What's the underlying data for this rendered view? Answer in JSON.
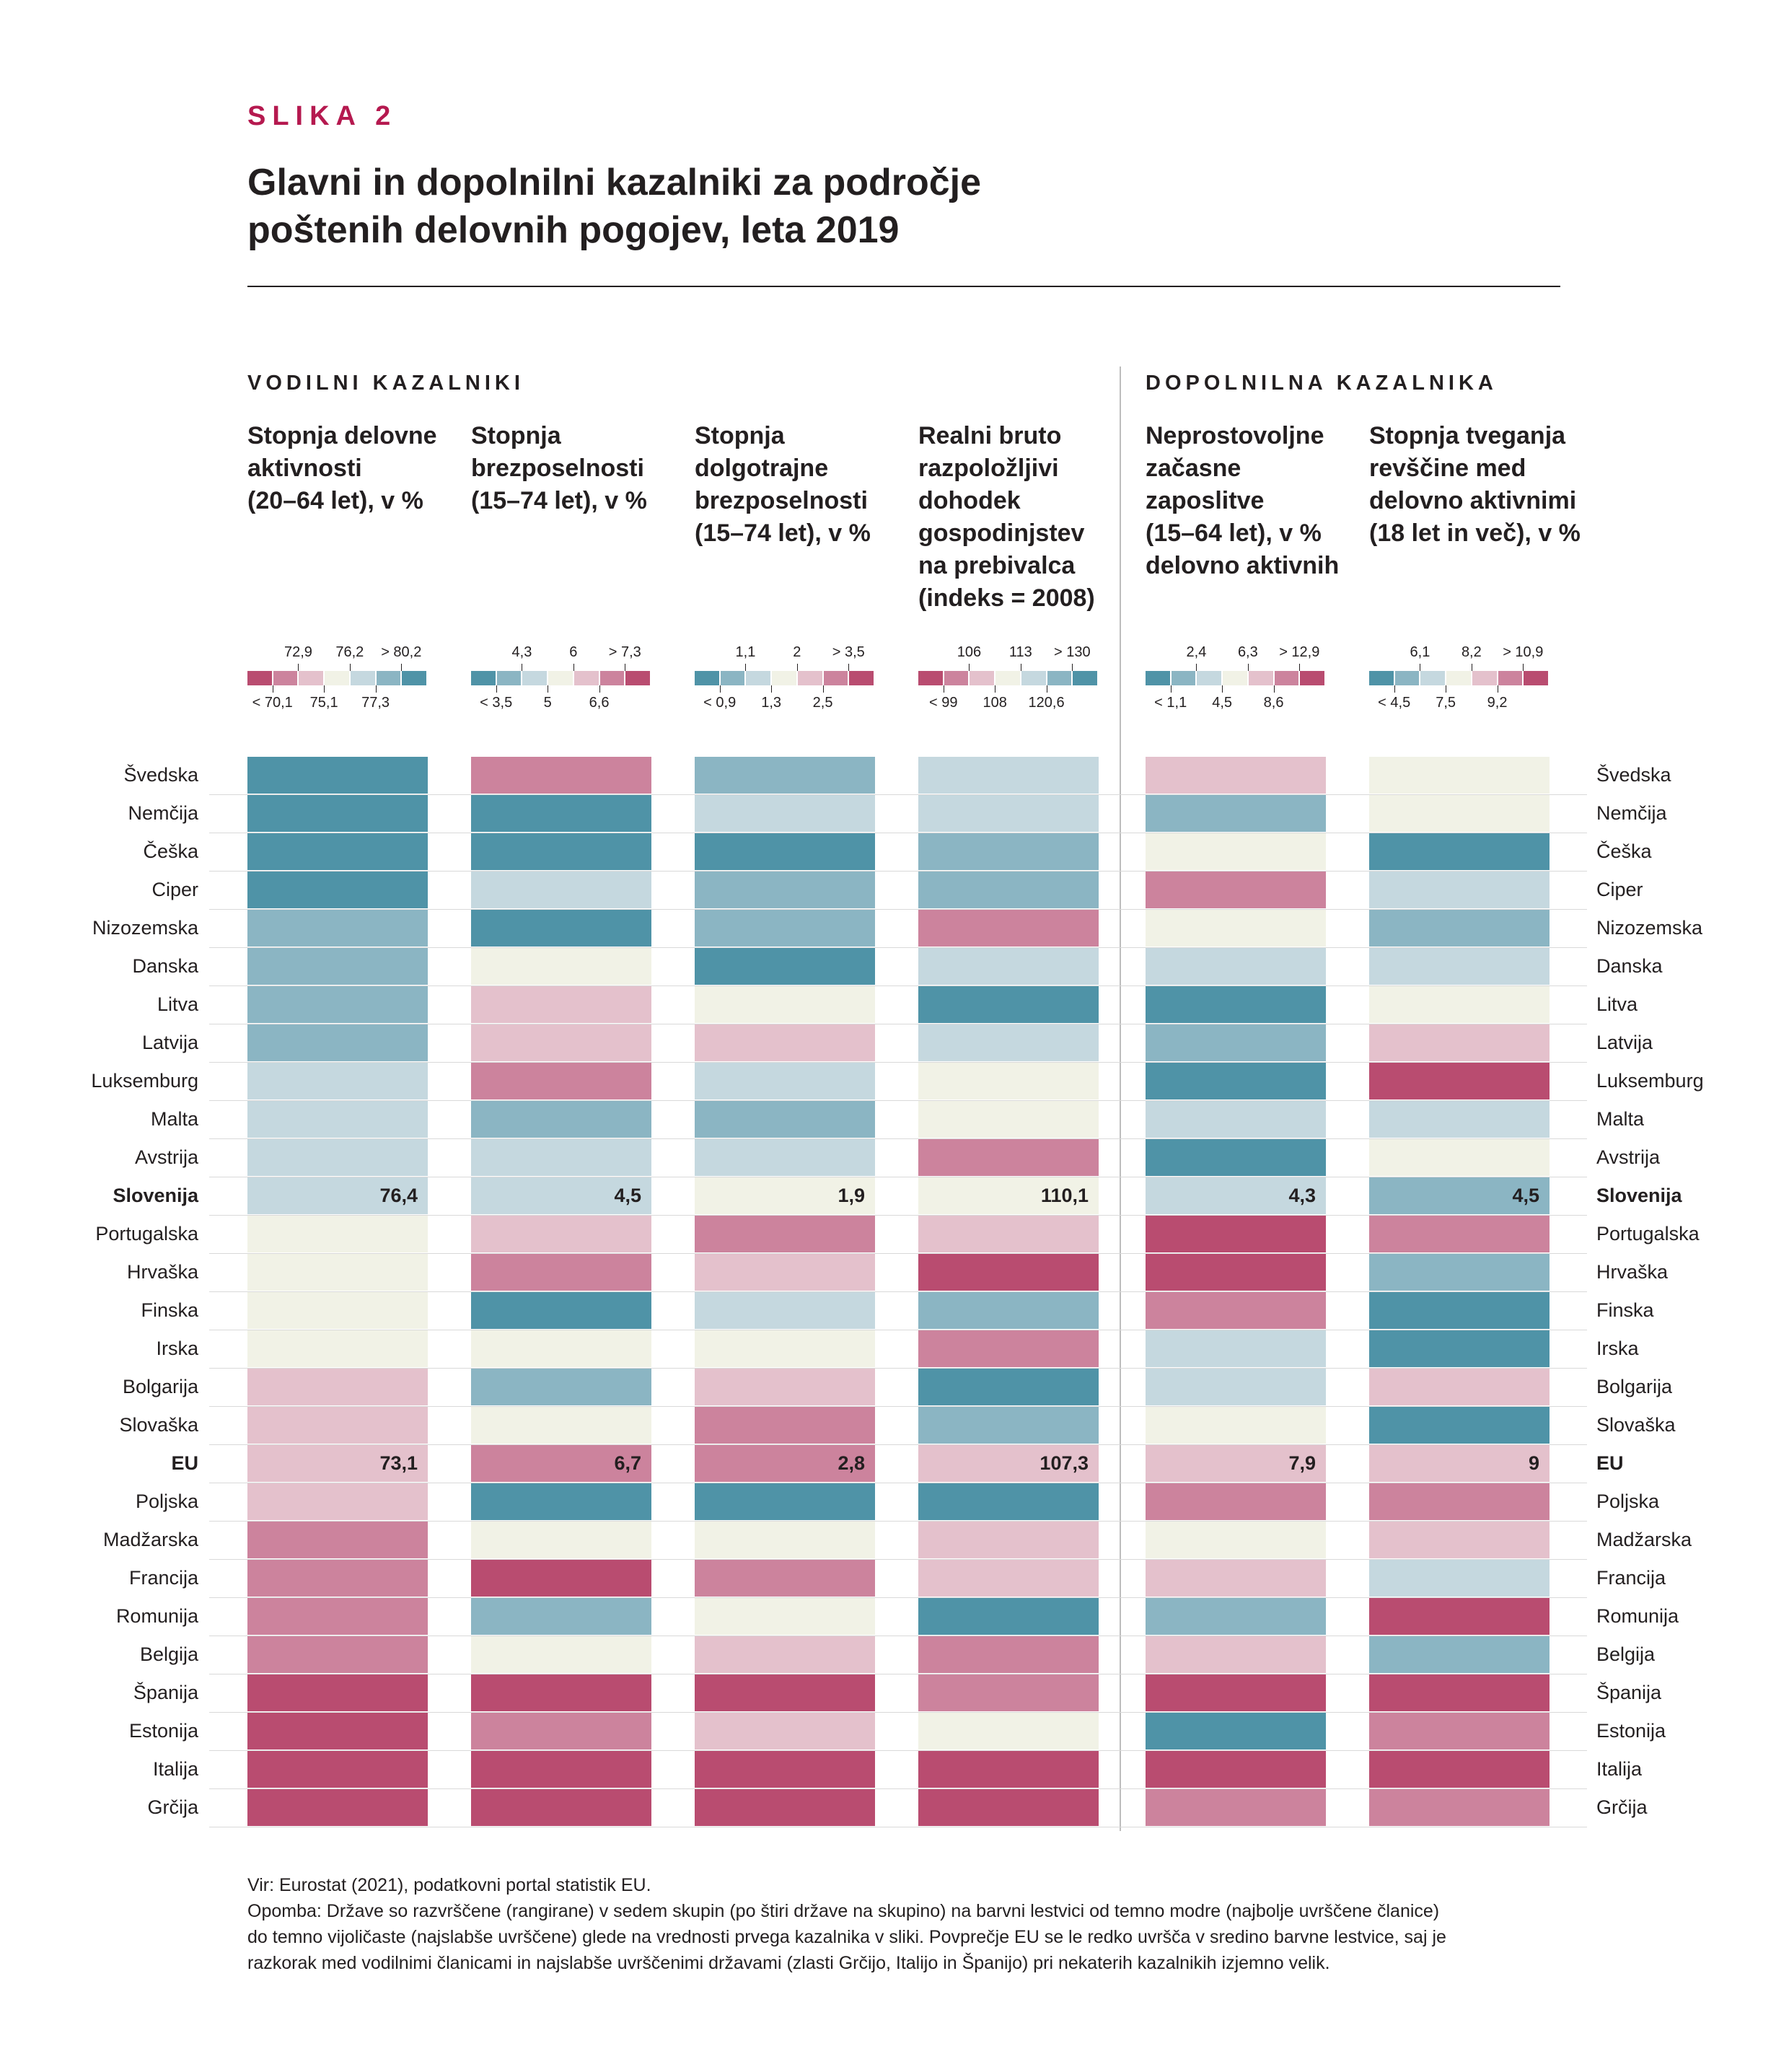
{
  "figure": {
    "label": "SLIKA 2",
    "title_line1": "Glavni in dopolnilni kazalniki za področje",
    "title_line2": "poštenih delovnih pogojev, leta 2019",
    "section_main": "VODILNI KAZALNIKI",
    "section_supp": "DOPOLNILNA KAZALNIKA",
    "source": "Vir: Eurostat (2021), podatkovni portal statistik EU.",
    "note_line1": "Opomba: Države so razvrščene (rangirane) v sedem skupin (po štiri države na skupino) na barvni lestvici od temno modre (najbolje uvrščene članice)",
    "note_line2": "do temno vijoličaste (najslabše uvrščene) glede na vrednosti prvega kazalnika v sliki. Povprečje EU se le redko uvršča v sredino barvne lestvice, saj je",
    "note_line3": "razkorak med vodilnimi članicami in najslabše uvrščenimi državami (zlasti Grčijo, Italijo in Španijo) pri nekaterih kazalnikih izjemno velik."
  },
  "colors": {
    "c1": "#4f93a7",
    "c2": "#8bb5c3",
    "c3": "#c5d8df",
    "c4": "#f1f2e6",
    "c5": "#e4c1cc",
    "c6": "#cc839d",
    "c7": "#b94c70",
    "accent": "#b5194f"
  },
  "chart_data": {
    "type": "heatmap",
    "countries": [
      "Švedska",
      "Nemčija",
      "Češka",
      "Ciper",
      "Nizozemska",
      "Danska",
      "Litva",
      "Latvija",
      "Luksemburg",
      "Malta",
      "Avstrija",
      "Slovenija",
      "Portugalska",
      "Hrvaška",
      "Finska",
      "Irska",
      "Bolgarija",
      "Slovaška",
      "EU",
      "Poljska",
      "Madžarska",
      "Francija",
      "Romunija",
      "Belgija",
      "Španija",
      "Estonija",
      "Italija",
      "Grčija"
    ],
    "highlight_rows": [
      "Slovenija",
      "EU"
    ],
    "columns": [
      {
        "title": [
          "Stopnja delovne",
          "aktivnosti",
          "(20–64 let), v %"
        ],
        "scale_top": [
          "72,9",
          "76,2",
          "> 80,2"
        ],
        "scale_bottom": [
          "< 70,1",
          "75,1",
          "77,3"
        ],
        "scale_dir": "pink-to-blue",
        "classes": [
          1,
          1,
          1,
          1,
          2,
          2,
          2,
          2,
          3,
          3,
          3,
          3,
          4,
          4,
          4,
          4,
          5,
          5,
          5,
          5,
          6,
          6,
          6,
          6,
          7,
          7,
          7,
          7
        ],
        "values": {
          "Slovenija": "76,4",
          "EU": "73,1"
        }
      },
      {
        "title": [
          "Stopnja",
          "brezposelnosti",
          "(15–74 let), v %"
        ],
        "scale_top": [
          "4,3",
          "6",
          "> 7,3"
        ],
        "scale_bottom": [
          "< 3,5",
          "5",
          "6,6"
        ],
        "scale_dir": "blue-to-pink",
        "classes": [
          6,
          1,
          1,
          3,
          1,
          4,
          5,
          5,
          6,
          2,
          3,
          3,
          5,
          6,
          1,
          4,
          2,
          4,
          6,
          1,
          4,
          7,
          2,
          4,
          7,
          6,
          7,
          7
        ],
        "values": {
          "Slovenija": "4,5",
          "EU": "6,7"
        }
      },
      {
        "title": [
          "Stopnja",
          "dolgotrajne",
          "brezposelnosti",
          "(15–74 let), v %"
        ],
        "scale_top": [
          "1,1",
          "2",
          "> 3,5"
        ],
        "scale_bottom": [
          "< 0,9",
          "1,3",
          "2,5"
        ],
        "scale_dir": "blue-to-pink",
        "classes": [
          2,
          3,
          1,
          2,
          2,
          1,
          4,
          5,
          3,
          2,
          3,
          4,
          6,
          5,
          3,
          4,
          5,
          6,
          6,
          1,
          4,
          6,
          4,
          5,
          7,
          5,
          7,
          7
        ],
        "values": {
          "Slovenija": "1,9",
          "EU": "2,8"
        }
      },
      {
        "title": [
          "Realni bruto",
          "razpoložljivi",
          "dohodek",
          "gospodinjstev",
          "na prebivalca",
          "(indeks = 2008)"
        ],
        "scale_top": [
          "106",
          "113",
          "> 130"
        ],
        "scale_bottom": [
          "< 99",
          "108",
          "120,6"
        ],
        "scale_dir": "pink-to-blue",
        "classes": [
          3,
          3,
          2,
          2,
          6,
          3,
          1,
          3,
          4,
          4,
          6,
          4,
          5,
          7,
          2,
          6,
          1,
          2,
          5,
          1,
          5,
          5,
          1,
          6,
          6,
          4,
          7,
          7
        ],
        "values": {
          "Slovenija": "110,1",
          "EU": "107,3"
        }
      },
      {
        "title": [
          "Neprostovoljne",
          "začasne",
          "zaposlitve",
          "(15–64 let), v %",
          "delovno aktivnih"
        ],
        "scale_top": [
          "2,4",
          "6,3",
          "> 12,9"
        ],
        "scale_bottom": [
          "< 1,1",
          "4,5",
          "8,6"
        ],
        "scale_dir": "blue-to-pink",
        "classes": [
          5,
          2,
          4,
          6,
          4,
          3,
          1,
          2,
          1,
          3,
          1,
          3,
          7,
          7,
          6,
          3,
          3,
          4,
          5,
          6,
          4,
          5,
          2,
          5,
          7,
          1,
          7,
          6
        ],
        "values": {
          "Slovenija": "4,3",
          "EU": "7,9"
        }
      },
      {
        "title": [
          "Stopnja tveganja",
          "revščine med",
          "delovno aktivnimi",
          "(18 let in več), v %"
        ],
        "scale_top": [
          "6,1",
          "8,2",
          "> 10,9"
        ],
        "scale_bottom": [
          "< 4,5",
          "7,5",
          "9,2"
        ],
        "scale_dir": "blue-to-pink",
        "classes": [
          4,
          4,
          1,
          3,
          2,
          3,
          4,
          5,
          7,
          3,
          4,
          2,
          6,
          2,
          1,
          1,
          5,
          1,
          5,
          6,
          5,
          3,
          7,
          2,
          7,
          6,
          7,
          6
        ],
        "values": {
          "Slovenija": "4,5",
          "EU": "9"
        }
      }
    ]
  }
}
